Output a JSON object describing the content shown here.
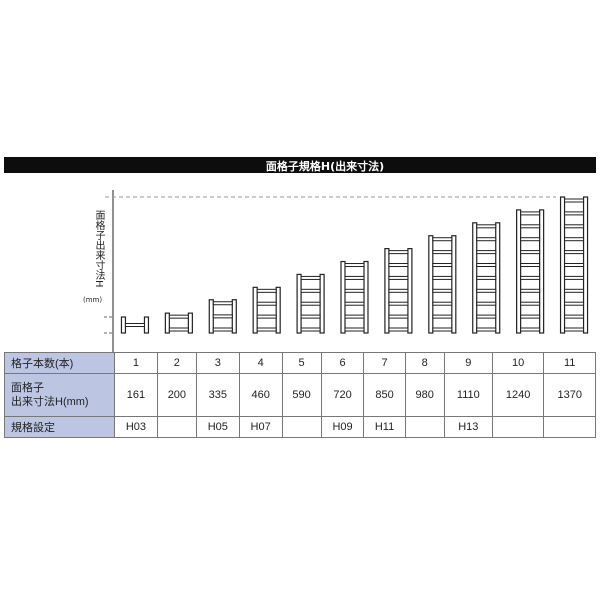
{
  "title": "面格子規格H(出来寸法)",
  "y_axis_label": "面格子出来寸法H",
  "y_axis_unit": "(mm)",
  "table": {
    "row_headers": [
      "格子本数(本)",
      "面格子",
      "出来寸法H(mm)",
      "規格設定"
    ],
    "counts": [
      "1",
      "2",
      "3",
      "4",
      "5",
      "6",
      "7",
      "8",
      "9",
      "10",
      "11"
    ],
    "heights": [
      "161",
      "200",
      "335",
      "460",
      "590",
      "720",
      "850",
      "980",
      "1110",
      "1240",
      "1370"
    ],
    "specs": [
      "H03",
      "",
      "H05",
      "H07",
      "",
      "H09",
      "H11",
      "",
      "H13",
      "",
      ""
    ]
  },
  "chart_data": {
    "type": "diagram",
    "items": [
      {
        "bars": 1,
        "height_mm": 161
      },
      {
        "bars": 2,
        "height_mm": 200
      },
      {
        "bars": 3,
        "height_mm": 335
      },
      {
        "bars": 4,
        "height_mm": 460
      },
      {
        "bars": 5,
        "height_mm": 590
      },
      {
        "bars": 6,
        "height_mm": 720
      },
      {
        "bars": 7,
        "height_mm": 850
      },
      {
        "bars": 8,
        "height_mm": 980
      },
      {
        "bars": 9,
        "height_mm": 1110
      },
      {
        "bars": 10,
        "height_mm": 1240
      },
      {
        "bars": 11,
        "height_mm": 1370
      }
    ]
  }
}
